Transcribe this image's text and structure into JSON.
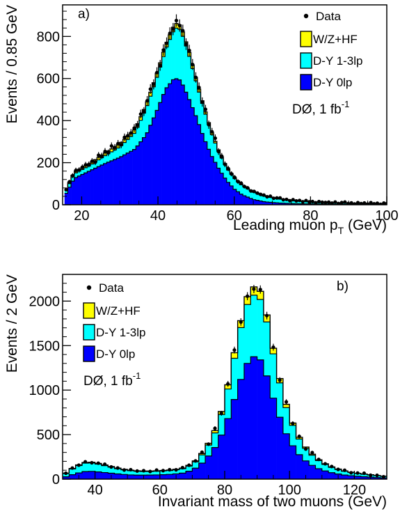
{
  "chart_data": [
    {
      "type": "histogram",
      "panel_label": "a)",
      "xlabel": "Leading muon p",
      "xlabel_sub": "T",
      "xlabel_suffix": " (GeV)",
      "ylabel": "Events / 0.85 GeV",
      "xlim": [
        15,
        100
      ],
      "ylim": [
        0,
        950
      ],
      "xticks": [
        20,
        40,
        60,
        80,
        100
      ],
      "yticks": [
        0,
        200,
        400,
        600,
        800
      ],
      "experiment": "DØ, 1 fb",
      "experiment_sup": "-1",
      "legend": [
        {
          "name": "Data",
          "marker": "dot"
        },
        {
          "name": "W/Z+HF",
          "color": "#ffff00"
        },
        {
          "name": "D-Y 1-3lp",
          "color": "#00ffff"
        },
        {
          "name": "D-Y 0lp",
          "color": "#0000ff"
        }
      ],
      "legend_placement": "top-right",
      "bins": {
        "start": 15.5,
        "width": 0.85,
        "count": 100
      },
      "shape_points": {
        "x": [
          15.5,
          18,
          22,
          26,
          30,
          34,
          37,
          40,
          42,
          44,
          45,
          46,
          48,
          50,
          52,
          54,
          56,
          58,
          60,
          62,
          65,
          68,
          72,
          76,
          80,
          85,
          90,
          95,
          100
        ],
        "total": [
          55,
          155,
          195,
          245,
          290,
          360,
          480,
          640,
          760,
          845,
          865,
          850,
          740,
          600,
          470,
          350,
          255,
          180,
          130,
          95,
          62,
          42,
          28,
          20,
          14,
          10,
          8,
          6,
          5
        ],
        "dy0": [
          40,
          125,
          160,
          195,
          225,
          265,
          335,
          460,
          550,
          595,
          600,
          590,
          510,
          420,
          320,
          235,
          170,
          115,
          75,
          48,
          25,
          14,
          8,
          5,
          4,
          3,
          2,
          1,
          1
        ],
        "whf": [
          3,
          8,
          10,
          13,
          15,
          17,
          18,
          20,
          22,
          22,
          22,
          21,
          19,
          16,
          12,
          9,
          7,
          5,
          4,
          3,
          2,
          2,
          1,
          1,
          1,
          1,
          0,
          0,
          0
        ]
      },
      "data_offsets": [
        0,
        8,
        -6,
        12,
        -10,
        5,
        15,
        -8,
        3,
        -12,
        10,
        -4,
        7,
        -9,
        14,
        -3,
        6,
        -11,
        9,
        2
      ]
    },
    {
      "type": "histogram",
      "panel_label": "b)",
      "xlabel": "Invariant mass of two muons (GeV)",
      "ylabel": "Events / 2 GeV",
      "xlim": [
        30,
        130
      ],
      "ylim": [
        0,
        2300
      ],
      "xticks": [
        40,
        60,
        80,
        100,
        120
      ],
      "yticks": [
        0,
        500,
        1000,
        1500,
        2000
      ],
      "experiment": "DØ, 1 fb",
      "experiment_sup": "-1",
      "legend": [
        {
          "name": "Data",
          "marker": "dot"
        },
        {
          "name": "W/Z+HF",
          "color": "#ffff00"
        },
        {
          "name": "D-Y 1-3lp",
          "color": "#00ffff"
        },
        {
          "name": "D-Y 0lp",
          "color": "#0000ff"
        }
      ],
      "legend_placement": "top-left",
      "bins": {
        "start": 30,
        "width": 2,
        "count": 50
      },
      "shape_points": {
        "x": [
          30,
          33,
          36,
          38,
          40,
          44,
          48,
          52,
          56,
          60,
          64,
          68,
          72,
          76,
          78,
          80,
          82,
          84,
          86,
          88,
          90,
          92,
          94,
          96,
          98,
          100,
          102,
          104,
          108,
          112,
          116,
          120,
          126,
          130
        ],
        "total": [
          40,
          120,
          180,
          195,
          185,
          150,
          115,
          95,
          90,
          95,
          105,
          130,
          230,
          460,
          630,
          890,
          1230,
          1610,
          1950,
          2150,
          2170,
          2050,
          1640,
          1300,
          960,
          720,
          540,
          400,
          240,
          150,
          100,
          70,
          45,
          30
        ],
        "dy0": [
          15,
          50,
          80,
          90,
          85,
          70,
          55,
          45,
          45,
          48,
          55,
          72,
          140,
          300,
          410,
          580,
          780,
          1010,
          1230,
          1370,
          1380,
          1300,
          1020,
          800,
          590,
          430,
          320,
          230,
          130,
          80,
          50,
          35,
          20,
          12
        ],
        "whf": [
          2,
          6,
          8,
          8,
          8,
          7,
          6,
          5,
          5,
          5,
          6,
          7,
          12,
          22,
          30,
          40,
          55,
          70,
          85,
          92,
          95,
          88,
          70,
          55,
          42,
          30,
          22,
          16,
          10,
          6,
          4,
          3,
          2,
          1
        ]
      },
      "data_offsets": [
        0,
        15,
        -10,
        25,
        -20,
        10,
        30,
        -15,
        5,
        -25,
        20,
        -8,
        12,
        -18,
        28,
        -5,
        10,
        -22,
        18,
        4
      ]
    }
  ]
}
